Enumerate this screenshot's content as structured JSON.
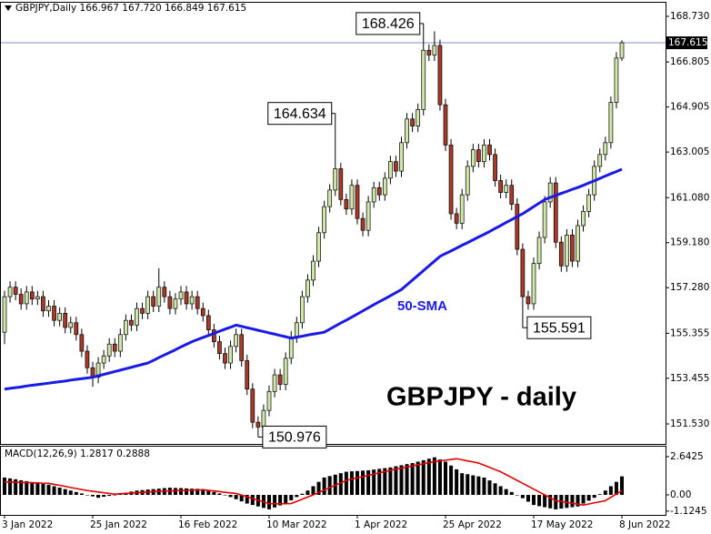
{
  "chart_data": {
    "type": "candlestick",
    "header": "GBPJPY,Daily  166.967 167.720 166.849 167.615",
    "title": "GBPJPY - daily",
    "categories": [
      "3 Jan 2022",
      null,
      null,
      null,
      null,
      null,
      null,
      null,
      null,
      null,
      null,
      null,
      null,
      null,
      null,
      null,
      "25 Jan 2022",
      null,
      null,
      null,
      null,
      null,
      null,
      null,
      null,
      null,
      null,
      null,
      null,
      null,
      null,
      null,
      "16 Feb 2022",
      null,
      null,
      null,
      null,
      null,
      null,
      null,
      null,
      null,
      null,
      null,
      null,
      null,
      null,
      null,
      "10 Mar 2022",
      null,
      null,
      null,
      null,
      null,
      null,
      null,
      null,
      null,
      null,
      null,
      null,
      null,
      null,
      null,
      "1 Apr 2022",
      null,
      null,
      null,
      null,
      null,
      null,
      null,
      null,
      null,
      null,
      null,
      null,
      null,
      null,
      null,
      "25 Apr 2022",
      null,
      null,
      null,
      null,
      null,
      null,
      null,
      null,
      null,
      null,
      null,
      null,
      null,
      null,
      null,
      "17 May 2022",
      null,
      null,
      null,
      null,
      null,
      null,
      null,
      null,
      null,
      null,
      null,
      null,
      null,
      null,
      null,
      "8 Jun 2022"
    ],
    "open": [
      155.4,
      156.9,
      157.3,
      157.0,
      156.6,
      157.1,
      156.8,
      156.9,
      156.3,
      156.5,
      155.9,
      156.2,
      155.6,
      155.8,
      155.3,
      154.6,
      153.9,
      153.5,
      154.1,
      154.4,
      154.9,
      154.6,
      155.3,
      155.9,
      155.7,
      156.4,
      156.2,
      156.9,
      156.5,
      157.3,
      156.9,
      156.4,
      156.8,
      157.1,
      156.6,
      156.9,
      156.4,
      156.1,
      155.5,
      155.0,
      154.5,
      154.1,
      154.8,
      155.3,
      154.2,
      153.0,
      151.6,
      151.4,
      152.1,
      152.9,
      153.6,
      153.2,
      154.3,
      155.2,
      155.8,
      156.9,
      157.6,
      158.4,
      159.6,
      160.7,
      161.4,
      162.3,
      161.0,
      160.6,
      161.6,
      160.2,
      159.7,
      160.9,
      161.5,
      161.2,
      161.9,
      162.6,
      162.2,
      163.4,
      164.4,
      164.1,
      164.8,
      167.3,
      167.1,
      167.5,
      165.0,
      163.3,
      160.4,
      160.0,
      161.2,
      162.4,
      163.1,
      162.6,
      163.3,
      162.9,
      161.8,
      161.3,
      161.6,
      160.8,
      158.9,
      156.9,
      156.6,
      158.3,
      159.4,
      160.9,
      161.7,
      159.2,
      158.2,
      159.5,
      158.4,
      159.9,
      160.5,
      161.2,
      162.4,
      162.9,
      163.4,
      165.1,
      166.967
    ],
    "high": [
      157.15,
      157.55,
      157.55,
      157.25,
      157.35,
      157.35,
      157.15,
      157.15,
      156.75,
      156.75,
      156.45,
      156.45,
      156.05,
      156.05,
      155.55,
      154.85,
      154.15,
      154.35,
      154.65,
      155.15,
      155.15,
      155.55,
      156.15,
      156.15,
      156.65,
      156.65,
      157.15,
      157.15,
      158.1,
      157.55,
      157.15,
      157.05,
      157.35,
      157.35,
      157.15,
      157.15,
      156.65,
      156.35,
      155.75,
      155.25,
      154.75,
      155.05,
      155.55,
      155.55,
      154.45,
      153.25,
      151.85,
      152.35,
      153.15,
      153.85,
      153.85,
      154.55,
      155.45,
      156.05,
      157.15,
      157.85,
      158.65,
      159.85,
      160.95,
      161.65,
      164.634,
      162.55,
      161.25,
      161.85,
      161.85,
      160.45,
      161.15,
      161.75,
      161.75,
      162.15,
      162.85,
      162.85,
      163.65,
      164.65,
      164.65,
      165.05,
      168.426,
      167.55,
      168.1,
      167.75,
      165.25,
      163.55,
      160.65,
      161.45,
      162.65,
      163.35,
      163.35,
      163.55,
      163.55,
      163.15,
      162.05,
      161.85,
      161.85,
      161.05,
      159.15,
      157.15,
      158.55,
      159.65,
      161.15,
      161.95,
      161.95,
      159.45,
      159.75,
      159.75,
      160.15,
      160.75,
      161.45,
      162.65,
      163.15,
      163.65,
      165.35,
      167.22,
      167.72
    ],
    "low": [
      154.9,
      156.65,
      156.75,
      156.35,
      156.35,
      156.55,
      156.55,
      156.05,
      156.05,
      155.65,
      155.65,
      155.35,
      155.35,
      155.05,
      154.35,
      153.65,
      153.1,
      153.25,
      153.85,
      154.15,
      154.35,
      154.35,
      155.05,
      155.45,
      155.45,
      155.95,
      155.95,
      156.25,
      156.25,
      156.65,
      156.15,
      156.15,
      156.55,
      156.35,
      156.35,
      156.15,
      155.85,
      155.25,
      154.75,
      154.25,
      153.85,
      153.85,
      154.55,
      153.95,
      152.75,
      151.35,
      150.976,
      151.15,
      151.85,
      152.65,
      152.95,
      152.95,
      154.05,
      154.95,
      155.55,
      156.65,
      157.35,
      158.15,
      159.35,
      160.45,
      161.15,
      160.75,
      160.35,
      160.35,
      159.95,
      159.45,
      159.45,
      160.65,
      160.95,
      160.95,
      161.65,
      161.95,
      161.95,
      163.15,
      163.85,
      163.85,
      164.55,
      166.85,
      166.85,
      164.75,
      163.05,
      160.15,
      159.75,
      159.75,
      160.95,
      162.15,
      162.35,
      162.35,
      162.65,
      161.55,
      161.05,
      161.05,
      160.55,
      158.65,
      155.591,
      156.35,
      156.35,
      158.05,
      159.15,
      160.65,
      158.95,
      157.95,
      157.95,
      158.15,
      158.15,
      159.65,
      160.25,
      160.95,
      162.15,
      162.65,
      163.15,
      164.85,
      166.849
    ],
    "close": [
      156.9,
      157.3,
      157.0,
      156.6,
      157.1,
      156.8,
      156.9,
      156.3,
      156.5,
      155.9,
      156.2,
      155.6,
      155.8,
      155.3,
      154.6,
      153.9,
      153.5,
      154.1,
      154.4,
      154.9,
      154.6,
      155.3,
      155.9,
      155.7,
      156.4,
      156.2,
      156.9,
      156.5,
      157.3,
      156.9,
      156.4,
      156.8,
      157.1,
      156.6,
      156.9,
      156.4,
      156.1,
      155.5,
      155.0,
      154.5,
      154.1,
      154.8,
      155.3,
      154.2,
      153.0,
      151.6,
      151.4,
      152.1,
      152.9,
      153.6,
      153.2,
      154.3,
      155.2,
      155.8,
      156.9,
      157.6,
      158.4,
      159.6,
      160.7,
      161.4,
      162.3,
      161.0,
      160.6,
      161.6,
      160.2,
      159.7,
      160.9,
      161.5,
      161.2,
      161.9,
      162.6,
      162.2,
      163.4,
      164.4,
      164.1,
      164.8,
      167.3,
      167.1,
      167.5,
      165.0,
      163.3,
      160.4,
      160.0,
      161.2,
      162.4,
      163.1,
      162.6,
      163.3,
      162.9,
      161.8,
      161.3,
      161.6,
      160.8,
      158.9,
      156.9,
      156.6,
      158.3,
      159.4,
      160.9,
      161.7,
      159.2,
      158.2,
      159.5,
      158.4,
      159.9,
      160.5,
      161.2,
      162.4,
      162.9,
      163.4,
      165.1,
      166.97,
      167.615
    ],
    "up_color": "#cfe8a9",
    "down_color": "#a83a2a",
    "series": [
      {
        "name": "50-SMA",
        "color": "#1a1ae6",
        "values": [
          153.0,
          153.03,
          153.06,
          153.09,
          153.13,
          153.16,
          153.19,
          153.22,
          153.25,
          153.28,
          153.31,
          153.34,
          153.38,
          153.41,
          153.44,
          153.47,
          153.5,
          153.56,
          153.62,
          153.68,
          153.74,
          153.8,
          153.86,
          153.92,
          153.98,
          154.04,
          154.1,
          154.21,
          154.33,
          154.44,
          154.55,
          154.66,
          154.78,
          154.89,
          155.0,
          155.09,
          155.18,
          155.26,
          155.35,
          155.44,
          155.53,
          155.61,
          155.7,
          155.65,
          155.59,
          155.54,
          155.48,
          155.43,
          155.37,
          155.32,
          155.26,
          155.21,
          155.15,
          155.19,
          155.23,
          155.28,
          155.32,
          155.36,
          155.4,
          155.53,
          155.66,
          155.79,
          155.91,
          156.04,
          156.17,
          156.3,
          156.43,
          156.56,
          156.69,
          156.81,
          156.94,
          157.07,
          157.2,
          157.4,
          157.6,
          157.8,
          158.0,
          158.2,
          158.4,
          158.6,
          158.72,
          158.83,
          158.95,
          159.07,
          159.18,
          159.3,
          159.42,
          159.53,
          159.65,
          159.78,
          159.9,
          160.03,
          160.15,
          160.28,
          160.4,
          160.55,
          160.7,
          160.85,
          161.0,
          161.09,
          161.17,
          161.26,
          161.34,
          161.43,
          161.51,
          161.6,
          161.7,
          161.79,
          161.89,
          161.99,
          162.09,
          162.18,
          162.28
        ]
      }
    ],
    "ylim": [
      150.685,
      169.306
    ],
    "yticks": [
      {
        "value": 168.73,
        "label": "168.730"
      },
      166.805,
      164.905,
      163.005,
      {
        "value": 161.08,
        "label": "161.080"
      },
      {
        "value": 159.18,
        "label": "159.180"
      },
      {
        "value": 157.28,
        "label": "157.280"
      },
      155.355,
      153.455,
      {
        "value": 151.53,
        "label": "151.530"
      }
    ],
    "price_line_color": "#8c8cc0",
    "macd": {
      "title": "MACD(12,26,9) 1.2817 0.2888",
      "histogram": {
        "color": "#000000",
        "values": [
          1.2,
          1.14,
          1.08,
          1.01,
          0.95,
          0.89,
          0.83,
          0.76,
          0.7,
          0.6,
          0.5,
          0.4,
          0.3,
          0.2,
          0.1,
          0.0,
          -0.1,
          -0.2,
          -0.13,
          -0.07,
          0.0,
          0.08,
          0.15,
          0.23,
          0.3,
          0.33,
          0.37,
          0.4,
          0.43,
          0.47,
          0.5,
          0.48,
          0.47,
          0.45,
          0.43,
          0.42,
          0.4,
          0.3,
          0.2,
          0.1,
          0.0,
          -0.15,
          -0.3,
          -0.45,
          -0.6,
          -0.7,
          -0.8,
          -0.9,
          -1.0,
          -0.87,
          -0.73,
          -0.6,
          -0.38,
          -0.15,
          0.08,
          0.3,
          0.6,
          0.9,
          1.2,
          1.3,
          1.4,
          1.5,
          1.6,
          1.63,
          1.65,
          1.68,
          1.7,
          1.75,
          1.8,
          1.85,
          1.9,
          1.98,
          2.05,
          2.13,
          2.2,
          2.3,
          2.4,
          2.5,
          2.6,
          2.45,
          2.3,
          2.03,
          1.77,
          1.5,
          1.43,
          1.35,
          1.28,
          1.2,
          1.0,
          0.8,
          0.6,
          0.4,
          0.2,
          0.0,
          -0.23,
          -0.47,
          -0.7,
          -0.78,
          -0.85,
          -0.93,
          -1.0,
          -0.95,
          -0.9,
          -0.85,
          -0.8,
          -0.6,
          -0.4,
          -0.2,
          0.05,
          0.3,
          0.6,
          0.9,
          1.2817
        ]
      },
      "signal": {
        "color": "#e00000",
        "values": [
          0.9,
          0.89,
          0.88,
          0.86,
          0.85,
          0.84,
          0.83,
          0.81,
          0.8,
          0.73,
          0.66,
          0.59,
          0.51,
          0.44,
          0.37,
          0.3,
          0.25,
          0.2,
          0.15,
          0.1,
          0.05,
          0.08,
          0.1,
          0.13,
          0.15,
          0.18,
          0.2,
          0.23,
          0.25,
          0.26,
          0.28,
          0.29,
          0.3,
          0.31,
          0.33,
          0.34,
          0.35,
          0.31,
          0.27,
          0.23,
          0.18,
          0.14,
          0.1,
          -0.02,
          -0.13,
          -0.25,
          -0.37,
          -0.48,
          -0.6,
          -0.62,
          -0.62,
          -0.61,
          -0.6,
          -0.45,
          -0.3,
          -0.15,
          0.0,
          0.17,
          0.33,
          0.5,
          0.67,
          0.83,
          1.0,
          1.09,
          1.18,
          1.26,
          1.35,
          1.44,
          1.53,
          1.61,
          1.7,
          1.78,
          1.85,
          1.93,
          2.0,
          2.08,
          2.15,
          2.23,
          2.3,
          2.35,
          2.4,
          2.45,
          2.5,
          2.43,
          2.35,
          2.28,
          2.2,
          2.05,
          1.9,
          1.75,
          1.6,
          1.4,
          1.2,
          1.0,
          0.8,
          0.6,
          0.4,
          0.2,
          0.0,
          -0.2,
          -0.4,
          -0.46,
          -0.52,
          -0.58,
          -0.64,
          -0.7,
          -0.63,
          -0.55,
          -0.48,
          -0.4,
          -0.17,
          0.06,
          0.2888
        ]
      },
      "ylim": [
        -1.384,
        3.335
      ],
      "yticks": [
        2.6425,
        {
          "value": 0,
          "label": "0.00"
        },
        -1.1245
      ]
    }
  }
}
